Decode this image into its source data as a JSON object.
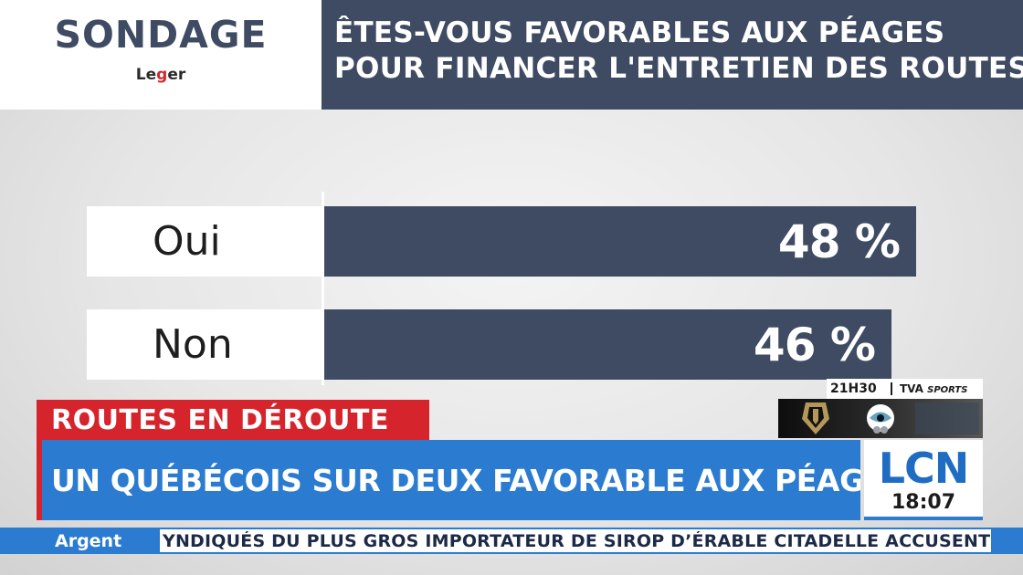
{
  "header": {
    "title": "SONDAGE",
    "brand": "Leger",
    "question_line1": "ÊTES-VOUS FAVORABLES AUX PÉAGES",
    "question_line2": "POUR FINANCER L'ENTRETIEN DES ROUTES?"
  },
  "chart_data": {
    "type": "bar",
    "orientation": "horizontal",
    "categories": [
      "Oui",
      "Non"
    ],
    "values": [
      48,
      46
    ],
    "value_labels": [
      "48 %",
      "46 %"
    ],
    "xlim": [
      0,
      100
    ],
    "bar_color": "#3e4b62"
  },
  "lower_third": {
    "tag": "ROUTES EN DÉROUTE",
    "headline": "UN QUÉBÉCOIS SUR DEUX FAVORABLE AUX PÉAGES ROUTIERS"
  },
  "channel": {
    "logo": "LCN",
    "time": "18:07"
  },
  "promo": {
    "time": "21H30",
    "network": "TVA",
    "network_suffix": "SPORTS",
    "team_icons": [
      "golden-knights-helmet-icon",
      "kraken-logo-icon"
    ]
  },
  "ticker": {
    "category": "Argent",
    "text": "YNDIQUÉS DU PLUS GROS IMPORTATEUR DE SIROP D’ÉRABLE CITADELLE ACCUSENT L’EMPL"
  },
  "colors": {
    "navy": "#3e4b62",
    "red": "#d6242d",
    "blue": "#2b7bd0",
    "lcn_blue": "#1f6cc3"
  }
}
